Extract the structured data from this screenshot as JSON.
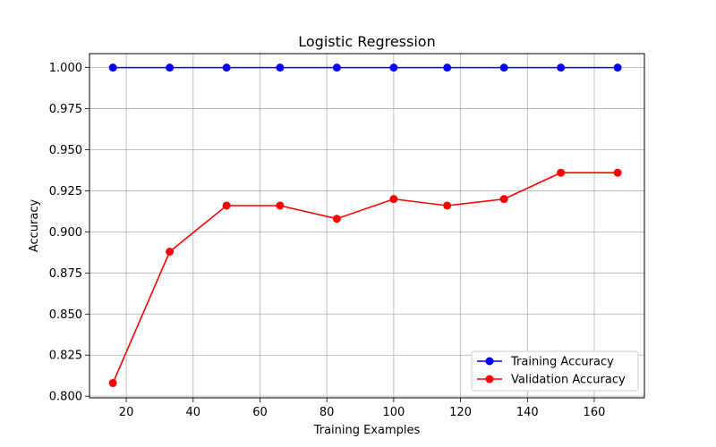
{
  "chart_data": {
    "type": "line",
    "title": "Logistic Regression",
    "xlabel": "Training Examples",
    "ylabel": "Accuracy",
    "xlim": [
      9,
      175
    ],
    "ylim": [
      0.799,
      1.0085
    ],
    "xticks": [
      20,
      40,
      60,
      80,
      100,
      120,
      140,
      160
    ],
    "xtick_labels": [
      "20",
      "40",
      "60",
      "80",
      "100",
      "120",
      "140",
      "160"
    ],
    "yticks": [
      0.8,
      0.825,
      0.85,
      0.875,
      0.9,
      0.925,
      0.95,
      0.975,
      1.0
    ],
    "ytick_labels": [
      "0.800",
      "0.825",
      "0.850",
      "0.875",
      "0.900",
      "0.925",
      "0.950",
      "0.975",
      "1.000"
    ],
    "grid": true,
    "legend_position": "lower-right",
    "x": [
      16,
      33,
      50,
      66,
      83,
      100,
      116,
      133,
      150,
      167
    ],
    "series": [
      {
        "name": "Training Accuracy",
        "color": "#0000ff",
        "marker": "circle",
        "values": [
          1.0,
          1.0,
          1.0,
          1.0,
          1.0,
          1.0,
          1.0,
          1.0,
          1.0,
          1.0
        ]
      },
      {
        "name": "Validation Accuracy",
        "color": "#ff0000",
        "marker": "circle",
        "values": [
          0.808,
          0.888,
          0.916,
          0.916,
          0.908,
          0.92,
          0.916,
          0.92,
          0.936,
          0.936
        ]
      }
    ]
  }
}
